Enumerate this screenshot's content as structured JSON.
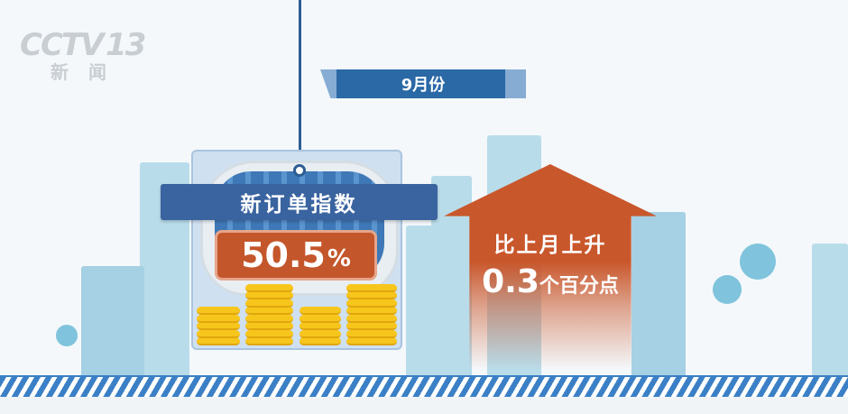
{
  "logo": {
    "channel": "CCTV",
    "number": "13",
    "subtitle": "新闻"
  },
  "month_banner": "9月份",
  "indicator": {
    "label": "新订单指数",
    "value": "50.5",
    "unit": "%"
  },
  "change": {
    "text": "比上月上升",
    "value": "0.3",
    "unit": "个百分点",
    "direction": "up"
  },
  "colors": {
    "blue": "#3a64a0",
    "orange": "#c4562b",
    "coin": "#f7c61c",
    "stripe": "#3b80c6"
  }
}
